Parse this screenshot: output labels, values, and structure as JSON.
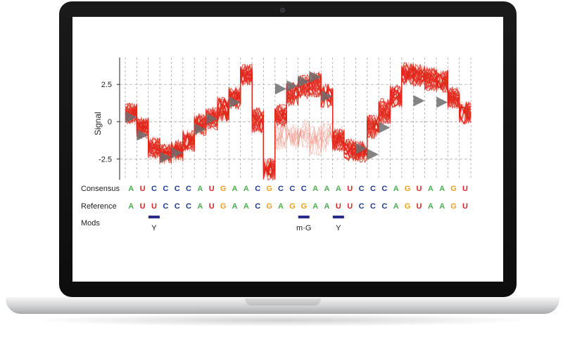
{
  "chart_data": {
    "type": "line",
    "ylabel": "Signal",
    "yticks": [
      2.5,
      0,
      -2.5
    ],
    "ytick_labels": [
      "2.5",
      "0",
      "-2.5"
    ],
    "ylim": [
      -3.9,
      4.3
    ],
    "grid": "dashed",
    "row_labels": {
      "consensus": "Consensus",
      "reference": "Reference",
      "mods": "Mods"
    },
    "consensus": [
      "A",
      "U",
      "C",
      "C",
      "C",
      "C",
      "A",
      "U",
      "G",
      "A",
      "A",
      "C",
      "G",
      "C",
      "C",
      "C",
      "A",
      "A",
      "A",
      "U",
      "C",
      "C",
      "C",
      "A",
      "G",
      "U",
      "A",
      "A",
      "G",
      "U"
    ],
    "reference": [
      "A",
      "U",
      "U",
      "C",
      "C",
      "C",
      "A",
      "U",
      "G",
      "A",
      "A",
      "C",
      "G",
      "A",
      "G",
      "G",
      "A",
      "A",
      "U",
      "U",
      "C",
      "C",
      "C",
      "A",
      "G",
      "U",
      "A",
      "A",
      "G",
      "U"
    ],
    "base_colors": {
      "A": "#4caf50",
      "U": "#d62728",
      "C": "#1f3d8c",
      "G": "#f0a020"
    },
    "mods": [
      {
        "position": 2,
        "label": "Y"
      },
      {
        "position": 15,
        "label": "m·G"
      },
      {
        "position": 18,
        "label": "Y"
      }
    ],
    "mod_color": "#2b2b8c",
    "series": [
      {
        "values": [
          0.5,
          -0.4,
          -1.8,
          -2.2,
          -2.0,
          -1.3,
          -0.2,
          0.2,
          0.8,
          1.6,
          3.1,
          0.1,
          -3.2,
          0.4,
          1.9,
          2.4,
          2.5,
          1.8,
          -1.2,
          -1.9,
          -2.0,
          -0.3,
          0.7,
          1.7,
          3.2,
          3.1,
          2.9,
          2.7,
          1.6,
          0.6
        ]
      },
      {
        "values": [
          0.3,
          -0.7,
          -2.0,
          -2.4,
          -2.2,
          -1.6,
          -0.5,
          -0.1,
          0.4,
          1.3,
          2.9,
          -0.3,
          -3.5,
          0.1,
          1.5,
          2.0,
          2.1,
          1.4,
          -1.6,
          -2.2,
          -2.3,
          -0.7,
          0.3,
          1.4,
          2.9,
          2.8,
          2.5,
          2.4,
          1.3,
          0.3
        ]
      },
      {
        "values": [
          0.8,
          -0.1,
          -1.5,
          -1.9,
          -1.7,
          -1.0,
          0.1,
          0.5,
          1.2,
          1.9,
          3.4,
          0.5,
          -2.9,
          0.7,
          2.2,
          2.7,
          2.9,
          2.1,
          -0.9,
          -1.6,
          -1.7,
          0.0,
          1.1,
          2.0,
          3.5,
          3.4,
          3.2,
          3.0,
          1.9,
          0.9
        ]
      }
    ],
    "faint_series": [
      {
        "values": [
          0.4,
          -0.5,
          -1.9,
          -2.2,
          -2.1,
          -1.4,
          -0.3,
          0.1,
          0.7,
          1.5,
          3.0,
          0.0,
          -3.1,
          -0.6,
          -0.8,
          -1.1,
          -0.9,
          -0.7,
          -1.0,
          -1.8,
          -1.9,
          -0.4,
          0.6,
          1.6,
          3.1,
          3.0,
          2.8,
          2.6,
          1.5,
          0.5
        ]
      },
      {
        "values": [
          0.6,
          -0.3,
          -1.7,
          -2.1,
          -1.9,
          -1.2,
          -0.1,
          0.3,
          0.9,
          1.7,
          3.2,
          0.2,
          -3.0,
          -1.4,
          -1.2,
          -0.5,
          -1.6,
          -1.3,
          -1.3,
          -1.9,
          -2.0,
          -0.2,
          0.8,
          1.8,
          3.3,
          3.2,
          3.0,
          2.8,
          1.7,
          0.7
        ]
      }
    ],
    "markers": [
      {
        "x": 0.5,
        "y": 0.3
      },
      {
        "x": 1.5,
        "y": -0.9
      },
      {
        "x": 3.5,
        "y": -2.4
      },
      {
        "x": 4.5,
        "y": -2.1
      },
      {
        "x": 6.5,
        "y": -0.5
      },
      {
        "x": 7.5,
        "y": 0.2
      },
      {
        "x": 9.5,
        "y": 1.3
      },
      {
        "x": 13.5,
        "y": 2.2
      },
      {
        "x": 14.5,
        "y": 2.4
      },
      {
        "x": 15.5,
        "y": 2.7
      },
      {
        "x": 16.5,
        "y": 3.0
      },
      {
        "x": 17.5,
        "y": 1.7
      },
      {
        "x": 20.5,
        "y": -1.8
      },
      {
        "x": 21.5,
        "y": -2.2
      },
      {
        "x": 22.5,
        "y": -0.4
      },
      {
        "x": 25.5,
        "y": 1.4
      },
      {
        "x": 27.5,
        "y": 1.3
      }
    ]
  }
}
